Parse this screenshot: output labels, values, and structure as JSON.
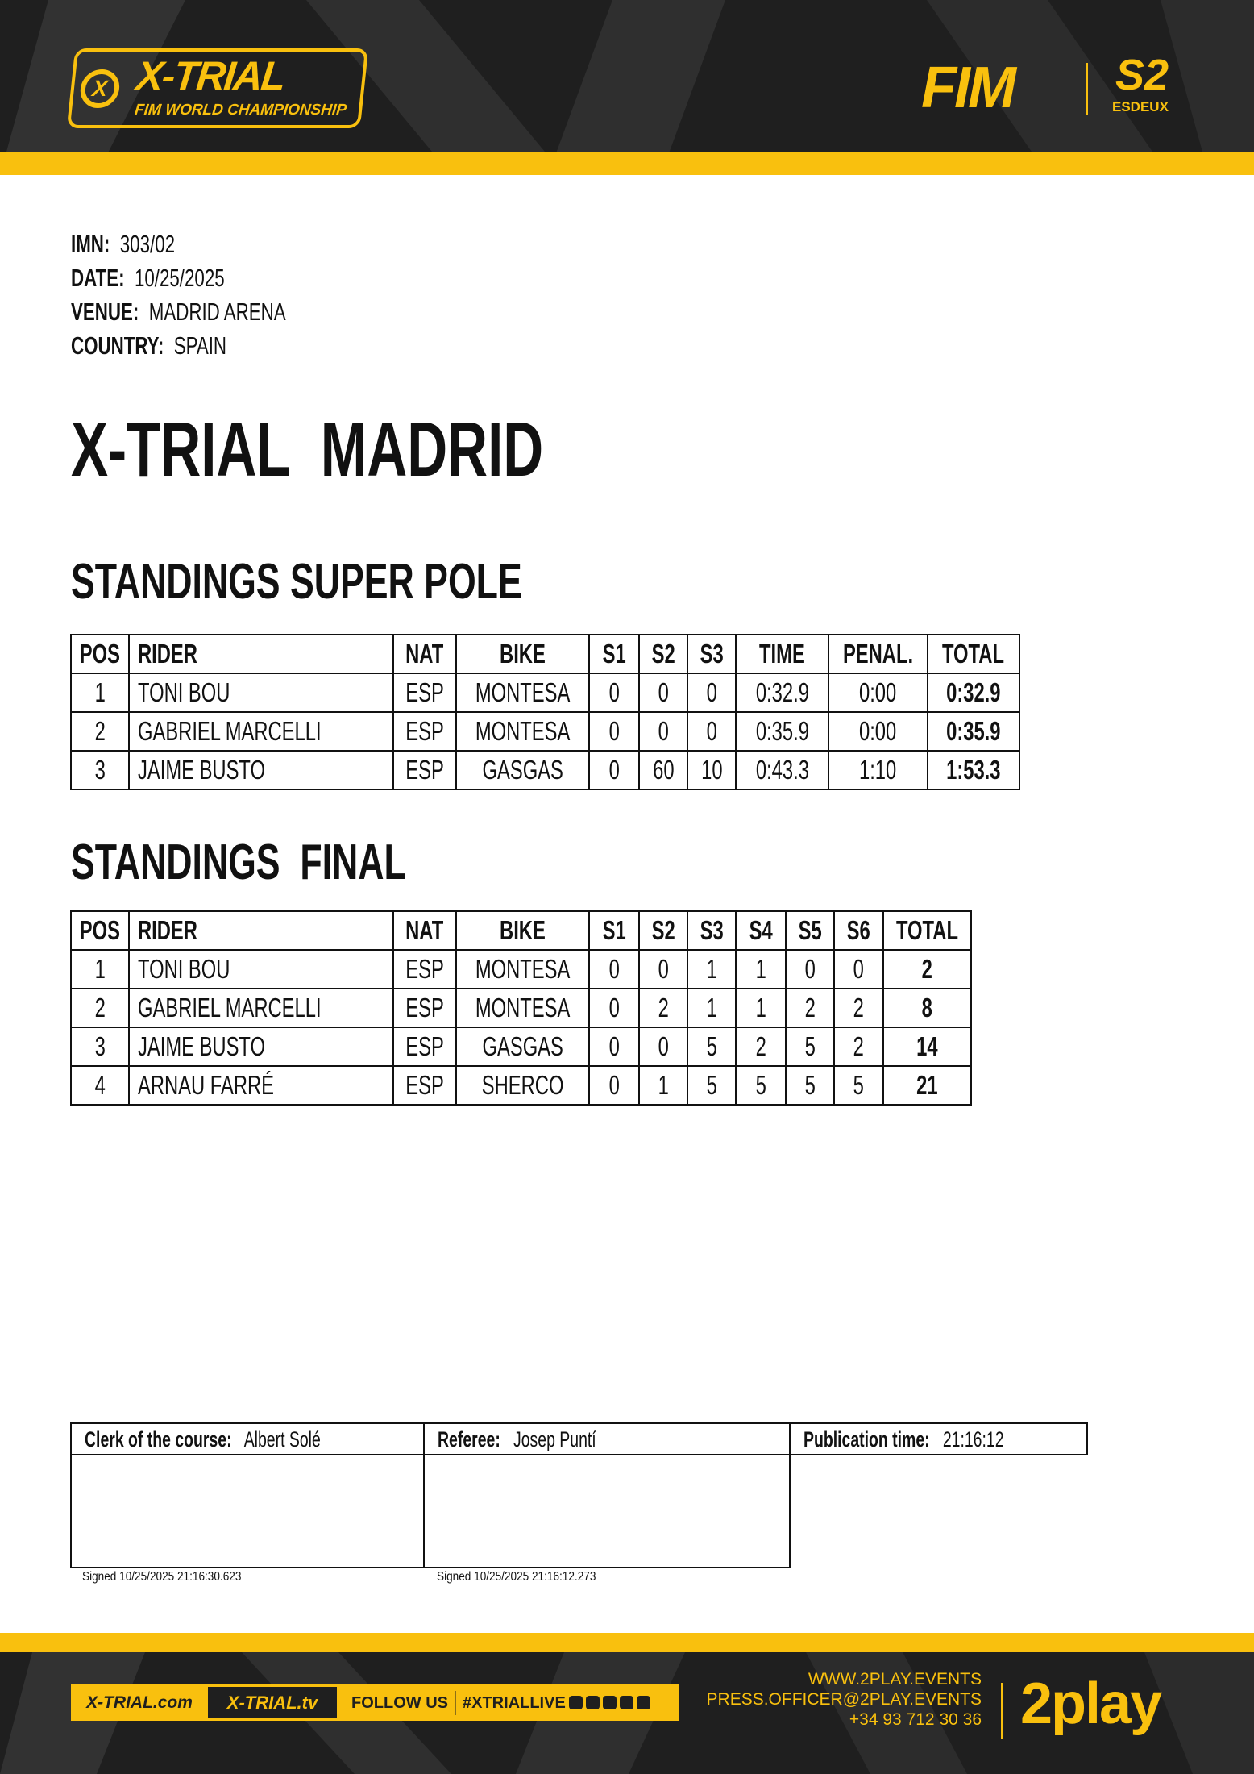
{
  "header": {
    "logo_text": "X-TRIAL",
    "logo_subtitle": "FIM WORLD CHAMPIONSHIP",
    "fim_logo": "FIM",
    "partner_logo": "S2",
    "partner_sub": "ESDEUX",
    "accent": "#f9c00e",
    "dark": "#1f1f1f"
  },
  "info": {
    "imn_label": "IMN:",
    "imn": "303/02",
    "date_label": "DATE:",
    "date": "10/25/2025",
    "venue_label": "VENUE:",
    "venue": "MADRID ARENA",
    "country_label": "COUNTRY:",
    "country": "SPAIN"
  },
  "title": "X-TRIAL  MADRID",
  "superpole": {
    "heading": "STANDINGS SUPER POLE",
    "columns": [
      "POS",
      "RIDER",
      "NAT",
      "BIKE",
      "S1",
      "S2",
      "S3",
      "TIME",
      "PENAL.",
      "TOTAL"
    ],
    "rows": [
      [
        "1",
        "TONI BOU",
        "ESP",
        "MONTESA",
        "0",
        "0",
        "0",
        "0:32.9",
        "0:00",
        "0:32.9"
      ],
      [
        "2",
        "GABRIEL MARCELLI",
        "ESP",
        "MONTESA",
        "0",
        "0",
        "0",
        "0:35.9",
        "0:00",
        "0:35.9"
      ],
      [
        "3",
        "JAIME BUSTO",
        "ESP",
        "GASGAS",
        "0",
        "60",
        "10",
        "0:43.3",
        "1:10",
        "1:53.3"
      ]
    ]
  },
  "final": {
    "heading": "STANDINGS  FINAL",
    "columns": [
      "POS",
      "RIDER",
      "NAT",
      "BIKE",
      "S1",
      "S2",
      "S3",
      "S4",
      "S5",
      "S6",
      "TOTAL"
    ],
    "rows": [
      [
        "1",
        "TONI BOU",
        "ESP",
        "MONTESA",
        "0",
        "0",
        "1",
        "1",
        "0",
        "0",
        "2"
      ],
      [
        "2",
        "GABRIEL MARCELLI",
        "ESP",
        "MONTESA",
        "0",
        "2",
        "1",
        "1",
        "2",
        "2",
        "8"
      ],
      [
        "3",
        "JAIME BUSTO",
        "ESP",
        "GASGAS",
        "0",
        "0",
        "5",
        "2",
        "5",
        "2",
        "14"
      ],
      [
        "4",
        "ARNAU FARRÉ",
        "ESP",
        "SHERCO",
        "0",
        "1",
        "5",
        "5",
        "5",
        "5",
        "21"
      ]
    ]
  },
  "signatures": {
    "clerk_label": "Clerk of the course:",
    "clerk": "Albert Solé",
    "referee_label": "Referee:",
    "referee": "Josep Puntí",
    "pub_label": "Publication time:",
    "pub_time": "21:16:12",
    "clerk_signed": "Signed 10/25/2025 21:16:30.623",
    "referee_signed": "Signed 10/25/2025 21:16:12.273"
  },
  "footer": {
    "site": "X-TRIAL.com",
    "tv": "X-TRIAL.tv",
    "follow": "FOLLOW US",
    "hashtag": "#XTRIALLIVE",
    "social_icons": [
      "facebook-icon",
      "twitter-icon",
      "instagram-icon",
      "youtube-icon",
      "tiktok-icon"
    ],
    "web": "WWW.2PLAY.EVENTS",
    "email": "PRESS.OFFICER@2PLAY.EVENTS",
    "phone": "+34 93 712 30 36",
    "brand": "2play"
  }
}
